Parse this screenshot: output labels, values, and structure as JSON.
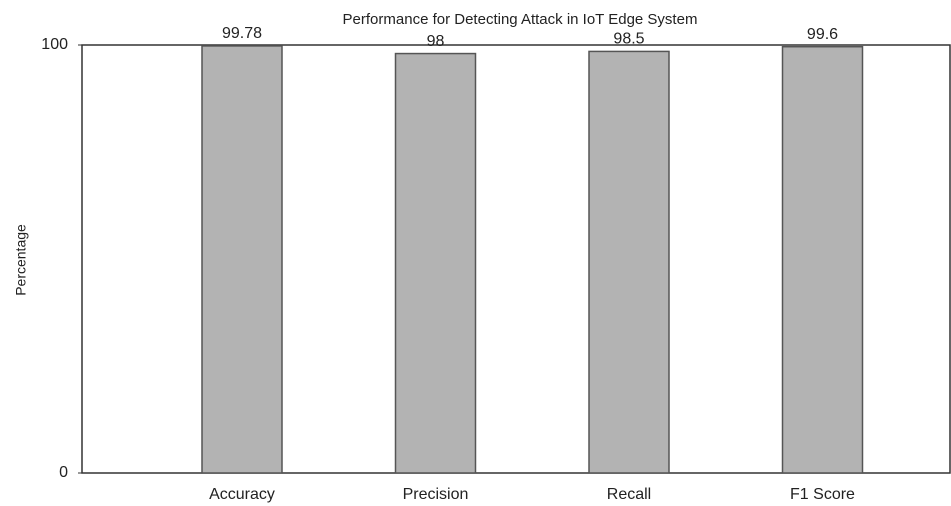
{
  "chart_data": {
    "type": "bar",
    "title": "Performance for Detecting Attack in IoT Edge System",
    "ylabel": "Percentage",
    "categories": [
      "Accuracy",
      "Precision",
      "Recall",
      "F1 Score"
    ],
    "values": [
      99.78,
      98,
      98.5,
      99.6
    ],
    "color": "#b3b3b3",
    "ylim": [
      0,
      100
    ],
    "yticks": [
      0,
      100
    ],
    "grid": false
  }
}
